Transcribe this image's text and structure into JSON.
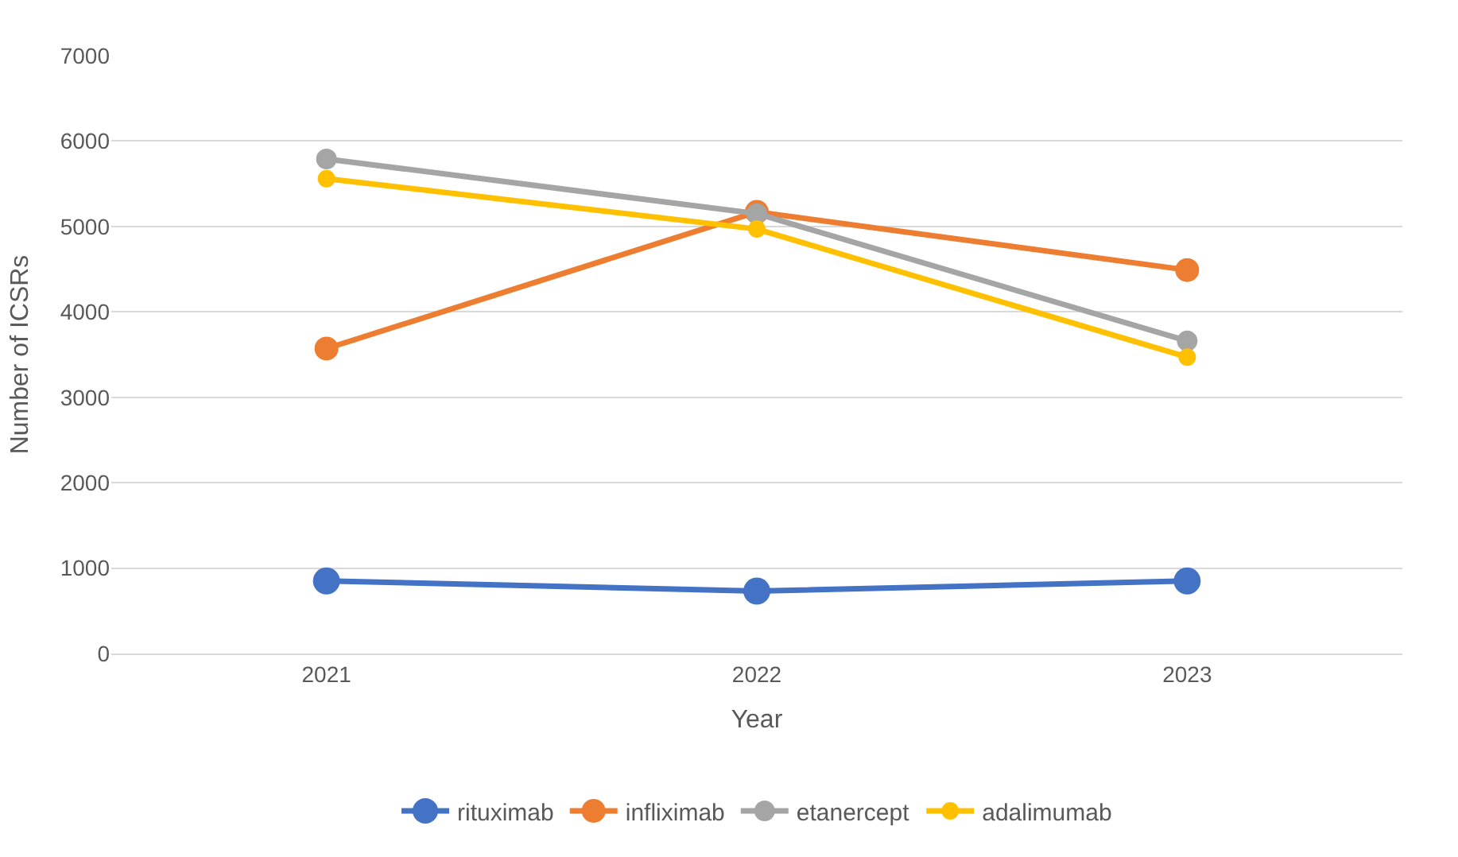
{
  "chart_data": {
    "type": "line",
    "xlabel": "Year",
    "ylabel": "Number of ICSRs",
    "categories": [
      "2021",
      "2022",
      "2023"
    ],
    "series": [
      {
        "name": "rituximab",
        "color": "#4472c4",
        "values": [
          850,
          730,
          850
        ]
      },
      {
        "name": "infliximab",
        "color": "#ed7d31",
        "values": [
          3570,
          5170,
          4490
        ]
      },
      {
        "name": "etanercept",
        "color": "#a5a5a5",
        "values": [
          5790,
          5150,
          3660
        ]
      },
      {
        "name": "adalimumab",
        "color": "#ffc000",
        "values": [
          5560,
          4970,
          3470
        ]
      }
    ],
    "ylim": [
      0,
      7000
    ],
    "yticks": [
      0,
      1000,
      2000,
      3000,
      4000,
      5000,
      6000,
      7000
    ],
    "grid": "y",
    "legend": "bottom",
    "marker": "circle",
    "line_style": "solid"
  }
}
